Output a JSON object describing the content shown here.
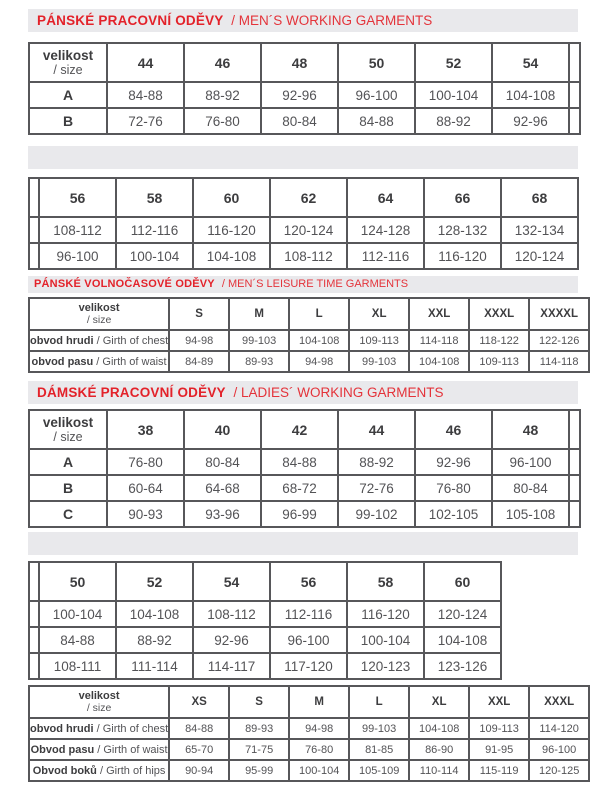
{
  "colors": {
    "accent_red": "#e3222a",
    "bar_gray": "#e9e9ec",
    "table_border": "#57575a",
    "text_dark": "#3d3d3f",
    "text_gray": "#535356"
  },
  "sections": {
    "mens_working": {
      "cz": "PÁNSKÉ PRACOVNÍ ODĚVY",
      "en": "/ MEN´S WORKING GARMENTS"
    },
    "mens_leisure": {
      "cz": "PÁNSKÉ VOLNOČASOVÉ ODĚVY",
      "en": "/ MEN´S LEISURE TIME GARMENTS"
    },
    "ladies_working": {
      "cz": "DÁMSKÉ PRACOVNÍ ODĚVY",
      "en": "/ LADIES´ WORKING GARMENTS"
    }
  },
  "corner": {
    "bold": "velikost",
    "sub": "/ size"
  },
  "tables": {
    "mens_working_1": {
      "columns": [
        "44",
        "46",
        "48",
        "50",
        "52",
        "54"
      ],
      "rows": [
        {
          "label": "A",
          "values": [
            "84-88",
            "88-92",
            "92-96",
            "96-100",
            "100-104",
            "104-108"
          ]
        },
        {
          "label": "B",
          "values": [
            "72-76",
            "76-80",
            "80-84",
            "84-88",
            "88-92",
            "92-96"
          ]
        }
      ]
    },
    "mens_working_2": {
      "columns": [
        "56",
        "58",
        "60",
        "62",
        "64",
        "66",
        "68"
      ],
      "rows": [
        {
          "values": [
            "108-112",
            "112-116",
            "116-120",
            "120-124",
            "124-128",
            "128-132",
            "132-134"
          ]
        },
        {
          "values": [
            "96-100",
            "100-104",
            "104-108",
            "108-112",
            "112-116",
            "116-120",
            "120-124"
          ]
        }
      ]
    },
    "mens_leisure": {
      "columns": [
        "S",
        "M",
        "L",
        "XL",
        "XXL",
        "XXXL",
        "XXXXL"
      ],
      "rows": [
        {
          "label_bold": "obvod hrudi",
          "label_reg": "/ Girth of chest",
          "values": [
            "94-98",
            "99-103",
            "104-108",
            "109-113",
            "114-118",
            "118-122",
            "122-126"
          ]
        },
        {
          "label_bold": "obvod pasu",
          "label_reg": "/ Girth of waist",
          "values": [
            "84-89",
            "89-93",
            "94-98",
            "99-103",
            "104-108",
            "109-113",
            "114-118"
          ]
        }
      ]
    },
    "ladies_working_1": {
      "columns": [
        "38",
        "40",
        "42",
        "44",
        "46",
        "48"
      ],
      "rows": [
        {
          "label": "A",
          "values": [
            "76-80",
            "80-84",
            "84-88",
            "88-92",
            "92-96",
            "96-100"
          ]
        },
        {
          "label": "B",
          "values": [
            "60-64",
            "64-68",
            "68-72",
            "72-76",
            "76-80",
            "80-84"
          ]
        },
        {
          "label": "C",
          "values": [
            "90-93",
            "93-96",
            "96-99",
            "99-102",
            "102-105",
            "105-108"
          ]
        }
      ]
    },
    "ladies_working_2": {
      "columns": [
        "50",
        "52",
        "54",
        "56",
        "58",
        "60"
      ],
      "rows": [
        {
          "values": [
            "100-104",
            "104-108",
            "108-112",
            "112-116",
            "116-120",
            "120-124"
          ]
        },
        {
          "values": [
            "84-88",
            "88-92",
            "92-96",
            "96-100",
            "100-104",
            "104-108"
          ]
        },
        {
          "values": [
            "108-111",
            "111-114",
            "114-117",
            "117-120",
            "120-123",
            "123-126"
          ]
        }
      ]
    },
    "unisex": {
      "columns": [
        "XS",
        "S",
        "M",
        "L",
        "XL",
        "XXL",
        "XXXL"
      ],
      "rows": [
        {
          "label_bold": "obvod hrudi",
          "label_reg": "/ Girth of chest",
          "values": [
            "84-88",
            "89-93",
            "94-98",
            "99-103",
            "104-108",
            "109-113",
            "114-120"
          ]
        },
        {
          "label_bold": "Obvod pasu",
          "label_reg": "/ Girth of waist",
          "values": [
            "65-70",
            "71-75",
            "76-80",
            "81-85",
            "86-90",
            "91-95",
            "96-100"
          ]
        },
        {
          "label_bold": "Obvod boků",
          "label_reg": "/ Girth of hips",
          "values": [
            "90-94",
            "95-99",
            "100-104",
            "105-109",
            "110-114",
            "115-119",
            "120-125"
          ]
        }
      ]
    }
  }
}
